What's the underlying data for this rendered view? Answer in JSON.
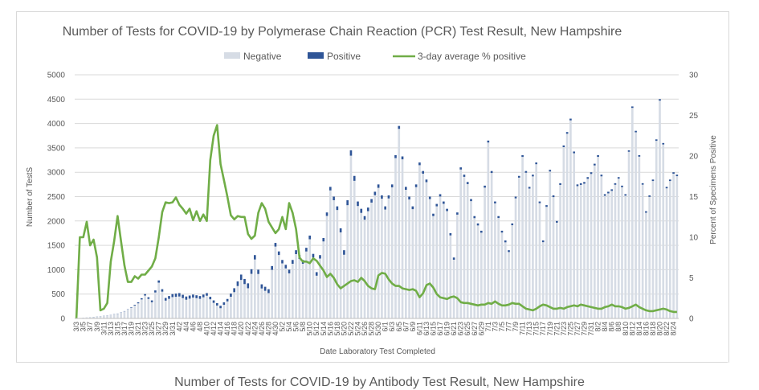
{
  "chart_data": {
    "type": "bar",
    "stacked": true,
    "title": "Number of Tests for COVID-19 by Polymerase Chain Reaction (PCR) Test Result, New Hampshire",
    "xlabel": "Date Laboratory Test Completed",
    "ylabel": "Number of TestS",
    "y2label": "Percent of Specimens Positive",
    "ylim": [
      0,
      5000
    ],
    "y2lim": [
      0,
      30
    ],
    "yticks": [
      "0",
      "500",
      "1000",
      "1500",
      "2000",
      "2500",
      "3000",
      "3500",
      "4000",
      "4500",
      "5000"
    ],
    "y2ticks": [
      "0",
      "5",
      "10",
      "15",
      "20",
      "25",
      "30"
    ],
    "grid": true,
    "legend_position": "top",
    "colors": {
      "negative": "#d6dce5",
      "positive": "#2f5597",
      "average": "#70ad47"
    },
    "legend": [
      {
        "name": "Negative",
        "kind": "bar",
        "color": "#d6dce5"
      },
      {
        "name": "Positive",
        "kind": "bar",
        "color": "#2f5597"
      },
      {
        "name": "3-day average % positive",
        "kind": "line",
        "color": "#70ad47"
      }
    ],
    "start_date": "3/3",
    "days": 176,
    "x_tick_labels": [
      "3/3",
      "3/5",
      "3/7",
      "3/9",
      "3/11",
      "3/13",
      "3/15",
      "3/17",
      "3/19",
      "3/21",
      "3/23",
      "3/25",
      "3/27",
      "3/29",
      "3/31",
      "4/2",
      "4/4",
      "4/6",
      "4/8",
      "4/10",
      "4/12",
      "4/14",
      "4/16",
      "4/18",
      "4/20",
      "4/22",
      "4/24",
      "4/26",
      "4/28",
      "4/30",
      "5/2",
      "5/4",
      "5/6",
      "5/8",
      "5/10",
      "5/12",
      "5/14",
      "5/16",
      "5/18",
      "5/20",
      "5/22",
      "5/24",
      "5/26",
      "5/28",
      "5/30",
      "6/1",
      "6/3",
      "6/5",
      "6/7",
      "6/9",
      "6/11",
      "6/13",
      "6/15",
      "6/17",
      "6/19",
      "6/21",
      "6/23",
      "6/25",
      "6/27",
      "6/29",
      "7/1",
      "7/3",
      "7/5",
      "7/7",
      "7/9",
      "7/11",
      "7/13",
      "7/15",
      "7/17",
      "7/19",
      "7/21",
      "7/23",
      "7/25",
      "7/27",
      "7/29",
      "7/31",
      "8/2",
      "8/4",
      "8/6",
      "8/8",
      "8/10",
      "8/12",
      "8/14",
      "8/16",
      "8/18",
      "8/20",
      "8/22",
      "8/24"
    ],
    "total_tests_keypoints": [
      [
        0,
        0
      ],
      [
        3,
        20
      ],
      [
        6,
        40
      ],
      [
        9,
        60
      ],
      [
        12,
        100
      ],
      [
        14,
        150
      ],
      [
        16,
        230
      ],
      [
        18,
        330
      ],
      [
        20,
        500
      ],
      [
        22,
        370
      ],
      [
        24,
        780
      ],
      [
        26,
        420
      ],
      [
        28,
        500
      ],
      [
        30,
        520
      ],
      [
        32,
        450
      ],
      [
        34,
        490
      ],
      [
        36,
        460
      ],
      [
        38,
        520
      ],
      [
        40,
        370
      ],
      [
        42,
        260
      ],
      [
        44,
        400
      ],
      [
        46,
        620
      ],
      [
        48,
        900
      ],
      [
        50,
        720
      ],
      [
        52,
        1300
      ],
      [
        54,
        700
      ],
      [
        56,
        600
      ],
      [
        58,
        1550
      ],
      [
        60,
        1200
      ],
      [
        62,
        1000
      ],
      [
        64,
        1400
      ],
      [
        66,
        1200
      ],
      [
        68,
        1700
      ],
      [
        70,
        950
      ],
      [
        72,
        1650
      ],
      [
        74,
        2700
      ],
      [
        76,
        2300
      ],
      [
        78,
        1400
      ],
      [
        80,
        3450
      ],
      [
        82,
        2400
      ],
      [
        84,
        2100
      ],
      [
        86,
        2450
      ],
      [
        88,
        2750
      ],
      [
        90,
        2300
      ],
      [
        92,
        2750
      ],
      [
        94,
        3950
      ],
      [
        96,
        2700
      ],
      [
        98,
        2300
      ],
      [
        100,
        3200
      ],
      [
        102,
        2850
      ],
      [
        104,
        2150
      ],
      [
        106,
        2550
      ],
      [
        108,
        2250
      ],
      [
        110,
        1250
      ],
      [
        112,
        3100
      ],
      [
        114,
        2800
      ],
      [
        116,
        2100
      ],
      [
        118,
        1800
      ],
      [
        120,
        3650
      ],
      [
        122,
        2400
      ],
      [
        124,
        1800
      ],
      [
        126,
        1400
      ],
      [
        128,
        2500
      ],
      [
        130,
        3350
      ],
      [
        132,
        2700
      ],
      [
        134,
        3200
      ],
      [
        136,
        1600
      ],
      [
        138,
        3050
      ],
      [
        140,
        2000
      ],
      [
        142,
        3550
      ],
      [
        144,
        4100
      ],
      [
        146,
        2750
      ],
      [
        148,
        2800
      ],
      [
        150,
        3000
      ],
      [
        152,
        3350
      ],
      [
        154,
        2550
      ],
      [
        156,
        2650
      ],
      [
        158,
        2900
      ],
      [
        160,
        2550
      ],
      [
        162,
        4350
      ],
      [
        164,
        3350
      ],
      [
        166,
        2200
      ],
      [
        168,
        2850
      ],
      [
        170,
        4500
      ],
      [
        172,
        2700
      ],
      [
        174,
        3000
      ],
      [
        175,
        2950
      ]
    ],
    "positive_tests_keypoints": [
      [
        0,
        0
      ],
      [
        15,
        5
      ],
      [
        20,
        30
      ],
      [
        30,
        70
      ],
      [
        40,
        50
      ],
      [
        44,
        50
      ],
      [
        46,
        80
      ],
      [
        48,
        110
      ],
      [
        52,
        90
      ],
      [
        56,
        80
      ],
      [
        60,
        70
      ],
      [
        64,
        80
      ],
      [
        68,
        75
      ],
      [
        72,
        70
      ],
      [
        76,
        75
      ],
      [
        80,
        110
      ],
      [
        84,
        75
      ],
      [
        88,
        70
      ],
      [
        92,
        60
      ],
      [
        96,
        60
      ],
      [
        100,
        55
      ],
      [
        104,
        50
      ],
      [
        110,
        45
      ],
      [
        120,
        40
      ],
      [
        130,
        35
      ],
      [
        140,
        35
      ],
      [
        150,
        35
      ],
      [
        160,
        30
      ],
      [
        175,
        30
      ]
    ],
    "percent_positive_3day": [
      [
        0,
        0.0
      ],
      [
        1,
        10.0
      ],
      [
        2,
        10.0
      ],
      [
        3,
        11.9
      ],
      [
        4,
        9.0
      ],
      [
        5,
        9.7
      ],
      [
        6,
        7.5
      ],
      [
        7,
        1.0
      ],
      [
        8,
        1.2
      ],
      [
        9,
        1.9
      ],
      [
        10,
        7.0
      ],
      [
        11,
        9.5
      ],
      [
        12,
        12.6
      ],
      [
        13,
        9.5
      ],
      [
        14,
        6.5
      ],
      [
        15,
        4.5
      ],
      [
        16,
        4.5
      ],
      [
        17,
        5.2
      ],
      [
        18,
        4.9
      ],
      [
        19,
        5.4
      ],
      [
        20,
        5.4
      ],
      [
        21,
        5.9
      ],
      [
        22,
        6.4
      ],
      [
        23,
        7.4
      ],
      [
        24,
        10.0
      ],
      [
        25,
        13.1
      ],
      [
        26,
        14.3
      ],
      [
        27,
        14.2
      ],
      [
        28,
        14.3
      ],
      [
        29,
        14.9
      ],
      [
        30,
        14.0
      ],
      [
        31,
        13.5
      ],
      [
        32,
        12.9
      ],
      [
        33,
        13.5
      ],
      [
        34,
        12.1
      ],
      [
        35,
        13.2
      ],
      [
        36,
        12.0
      ],
      [
        37,
        12.8
      ],
      [
        38,
        12.0
      ],
      [
        39,
        19.5
      ],
      [
        40,
        22.5
      ],
      [
        41,
        23.8
      ],
      [
        42,
        19.0
      ],
      [
        43,
        17.0
      ],
      [
        44,
        15.0
      ],
      [
        45,
        12.7
      ],
      [
        46,
        12.2
      ],
      [
        47,
        12.6
      ],
      [
        48,
        12.5
      ],
      [
        49,
        12.5
      ],
      [
        50,
        10.4
      ],
      [
        51,
        9.8
      ],
      [
        52,
        10.2
      ],
      [
        53,
        13.0
      ],
      [
        54,
        14.2
      ],
      [
        55,
        13.5
      ],
      [
        56,
        11.9
      ],
      [
        57,
        11.2
      ],
      [
        58,
        10.5
      ],
      [
        59,
        11.0
      ],
      [
        60,
        12.5
      ],
      [
        61,
        11.0
      ],
      [
        62,
        14.2
      ],
      [
        63,
        13.0
      ],
      [
        64,
        11.0
      ],
      [
        65,
        7.5
      ],
      [
        66,
        7.0
      ],
      [
        67,
        7.0
      ],
      [
        68,
        6.8
      ],
      [
        69,
        7.4
      ],
      [
        70,
        7.1
      ],
      [
        71,
        6.5
      ],
      [
        72,
        5.9
      ],
      [
        73,
        5.1
      ],
      [
        74,
        5.5
      ],
      [
        75,
        5.0
      ],
      [
        76,
        4.2
      ],
      [
        77,
        3.7
      ],
      [
        78,
        4.0
      ],
      [
        79,
        4.3
      ],
      [
        80,
        4.6
      ],
      [
        81,
        4.7
      ],
      [
        82,
        4.5
      ],
      [
        83,
        5.0
      ],
      [
        84,
        4.6
      ],
      [
        85,
        4.0
      ],
      [
        86,
        3.7
      ],
      [
        87,
        3.6
      ],
      [
        88,
        5.3
      ],
      [
        89,
        5.6
      ],
      [
        90,
        5.5
      ],
      [
        91,
        4.8
      ],
      [
        92,
        4.3
      ],
      [
        93,
        4.0
      ],
      [
        94,
        4.0
      ],
      [
        95,
        3.7
      ],
      [
        96,
        3.6
      ],
      [
        97,
        3.5
      ],
      [
        98,
        3.6
      ],
      [
        99,
        3.4
      ],
      [
        100,
        2.6
      ],
      [
        101,
        3.1
      ],
      [
        102,
        4.1
      ],
      [
        103,
        4.3
      ],
      [
        104,
        3.8
      ],
      [
        105,
        3.0
      ],
      [
        106,
        2.6
      ],
      [
        107,
        2.5
      ],
      [
        108,
        2.4
      ],
      [
        109,
        2.6
      ],
      [
        110,
        2.7
      ],
      [
        111,
        2.5
      ],
      [
        112,
        2.0
      ],
      [
        113,
        1.9
      ],
      [
        114,
        1.9
      ],
      [
        115,
        1.8
      ],
      [
        116,
        1.7
      ],
      [
        117,
        1.6
      ],
      [
        118,
        1.7
      ],
      [
        119,
        1.7
      ],
      [
        120,
        1.9
      ],
      [
        121,
        1.8
      ],
      [
        122,
        2.1
      ],
      [
        123,
        1.8
      ],
      [
        124,
        1.6
      ],
      [
        125,
        1.6
      ],
      [
        126,
        1.7
      ],
      [
        127,
        1.9
      ],
      [
        128,
        1.8
      ],
      [
        129,
        1.8
      ],
      [
        130,
        1.5
      ],
      [
        131,
        1.2
      ],
      [
        132,
        1.1
      ],
      [
        133,
        1.0
      ],
      [
        134,
        1.2
      ],
      [
        135,
        1.5
      ],
      [
        136,
        1.7
      ],
      [
        137,
        1.6
      ],
      [
        138,
        1.4
      ],
      [
        139,
        1.2
      ],
      [
        140,
        1.2
      ],
      [
        141,
        1.3
      ],
      [
        142,
        1.2
      ],
      [
        143,
        1.4
      ],
      [
        144,
        1.5
      ],
      [
        145,
        1.6
      ],
      [
        146,
        1.5
      ],
      [
        147,
        1.7
      ],
      [
        148,
        1.6
      ],
      [
        149,
        1.5
      ],
      [
        150,
        1.4
      ],
      [
        151,
        1.3
      ],
      [
        152,
        1.2
      ],
      [
        153,
        1.2
      ],
      [
        154,
        1.4
      ],
      [
        155,
        1.5
      ],
      [
        156,
        1.7
      ],
      [
        157,
        1.5
      ],
      [
        158,
        1.5
      ],
      [
        159,
        1.4
      ],
      [
        160,
        1.2
      ],
      [
        161,
        1.3
      ],
      [
        162,
        1.5
      ],
      [
        163,
        1.7
      ],
      [
        164,
        1.4
      ],
      [
        165,
        1.2
      ],
      [
        166,
        1.0
      ],
      [
        167,
        0.9
      ],
      [
        168,
        0.9
      ],
      [
        169,
        1.0
      ],
      [
        170,
        1.1
      ],
      [
        171,
        1.2
      ],
      [
        172,
        1.1
      ],
      [
        173,
        0.9
      ],
      [
        174,
        0.8
      ],
      [
        175,
        0.8
      ]
    ]
  },
  "next_chart": {
    "title": "Number of Tests for COVID-19 by Antibody Test Result, New Hampshire"
  }
}
